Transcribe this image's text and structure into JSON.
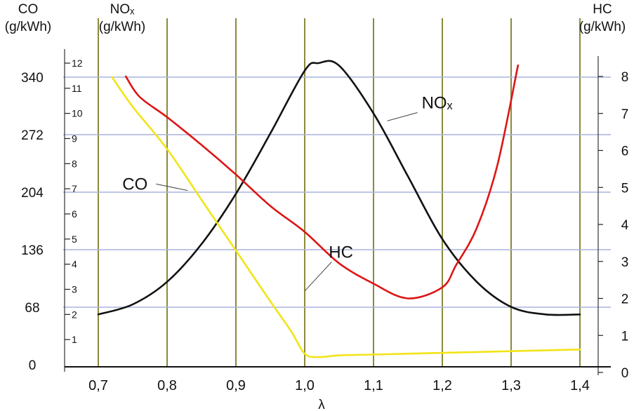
{
  "chart_data": {
    "type": "line",
    "axes": {
      "co": {
        "title_lines": [
          "CO",
          "(g/kWh)"
        ],
        "range": [
          0,
          340
        ],
        "ticks": [
          "0",
          "68",
          "136",
          "204",
          "272",
          "340"
        ]
      },
      "nox": {
        "title_lines": [
          "NOₓ",
          "(g/kWh)"
        ],
        "range": [
          0,
          12
        ],
        "ticks": [
          "1",
          "2",
          "3",
          "4",
          "5",
          "6",
          "7",
          "8",
          "9",
          "10",
          "11",
          "12"
        ]
      },
      "hc": {
        "title_lines": [
          "HC",
          "(g/kWh)"
        ],
        "range": [
          0,
          8
        ],
        "ticks": [
          "0",
          "1",
          "2",
          "3",
          "4",
          "5",
          "6",
          "7",
          "8"
        ]
      },
      "x": {
        "label": "λ",
        "range": [
          0.65,
          1.45
        ],
        "ticks": [
          "0,7",
          "0,8",
          "0,9",
          "1,0",
          "1,1",
          "1,2",
          "1,3",
          "1,4"
        ],
        "tick_values": [
          0.7,
          0.8,
          0.9,
          1.0,
          1.1,
          1.2,
          1.3,
          1.4
        ]
      }
    },
    "grid": true,
    "series": [
      {
        "name": "NOₓ",
        "axis": "nox",
        "color": "#111111",
        "label_at": [
          1.17,
          10.2
        ],
        "leader_to": [
          1.12,
          9.7
        ],
        "points": [
          [
            0.7,
            2.0
          ],
          [
            0.75,
            2.4
          ],
          [
            0.8,
            3.3
          ],
          [
            0.85,
            4.8
          ],
          [
            0.9,
            6.8
          ],
          [
            0.95,
            9.2
          ],
          [
            1.0,
            11.7
          ],
          [
            1.02,
            12.0
          ],
          [
            1.05,
            11.9
          ],
          [
            1.1,
            10.0
          ],
          [
            1.15,
            7.5
          ],
          [
            1.2,
            5.0
          ],
          [
            1.25,
            3.3
          ],
          [
            1.3,
            2.3
          ],
          [
            1.35,
            2.0
          ],
          [
            1.4,
            2.0
          ]
        ]
      },
      {
        "name": "HC",
        "axis": "hc",
        "color": "#dd1515",
        "label_at": [
          1.035,
          3.1
        ],
        "leader_to": [
          1.0,
          2.2
        ],
        "points": [
          [
            0.74,
            8.0
          ],
          [
            0.76,
            7.45
          ],
          [
            0.8,
            6.9
          ],
          [
            0.85,
            6.15
          ],
          [
            0.9,
            5.35
          ],
          [
            0.95,
            4.5
          ],
          [
            1.0,
            3.8
          ],
          [
            1.05,
            2.95
          ],
          [
            1.1,
            2.4
          ],
          [
            1.15,
            2.0
          ],
          [
            1.2,
            2.3
          ],
          [
            1.22,
            2.9
          ],
          [
            1.25,
            3.9
          ],
          [
            1.28,
            5.6
          ],
          [
            1.31,
            8.3
          ]
        ]
      },
      {
        "name": "CO",
        "axis": "co",
        "color": "#f2e417",
        "label_at": [
          0.735,
          207
        ],
        "leader_to": [
          0.83,
          206
        ],
        "points": [
          [
            0.72,
            340
          ],
          [
            0.75,
            305
          ],
          [
            0.8,
            255
          ],
          [
            0.85,
            195
          ],
          [
            0.9,
            135
          ],
          [
            0.95,
            75
          ],
          [
            0.98,
            40
          ],
          [
            1.0,
            13
          ],
          [
            1.02,
            9
          ],
          [
            1.05,
            11
          ],
          [
            1.1,
            12
          ],
          [
            1.2,
            14
          ],
          [
            1.3,
            16
          ],
          [
            1.4,
            18
          ]
        ]
      }
    ]
  }
}
